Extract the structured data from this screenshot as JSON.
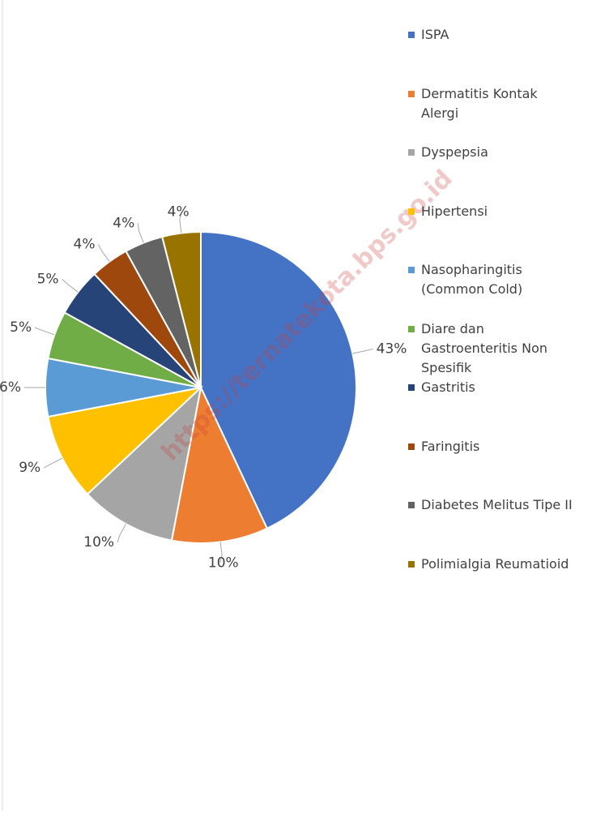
{
  "chart_data": {
    "type": "pie",
    "watermark": "https://ternatekota.bps.go.id",
    "categories": [
      "ISPA",
      "Dermatitis Kontak Alergi",
      "Dyspepsia",
      "Hipertensi",
      "Nasopharingitis (Common Cold)",
      "Diare dan Gastroenteritis Non Spesifik",
      "Gastritis",
      "Faringitis",
      "Diabetes Melitus Tipe II",
      "Polimialgia Reumatioid"
    ],
    "values": [
      43,
      10,
      10,
      9,
      6,
      5,
      5,
      4,
      4,
      4
    ],
    "value_labels": [
      "43%",
      "10%",
      "10%",
      "9%",
      "6%",
      "5%",
      "5%",
      "4%",
      "4%",
      "4%"
    ],
    "colors": [
      "#4472c4",
      "#ed7d31",
      "#a5a5a5",
      "#ffc000",
      "#5b9bd5",
      "#70ad47",
      "#264478",
      "#9e480e",
      "#636363",
      "#997300"
    ],
    "legend": "right"
  }
}
